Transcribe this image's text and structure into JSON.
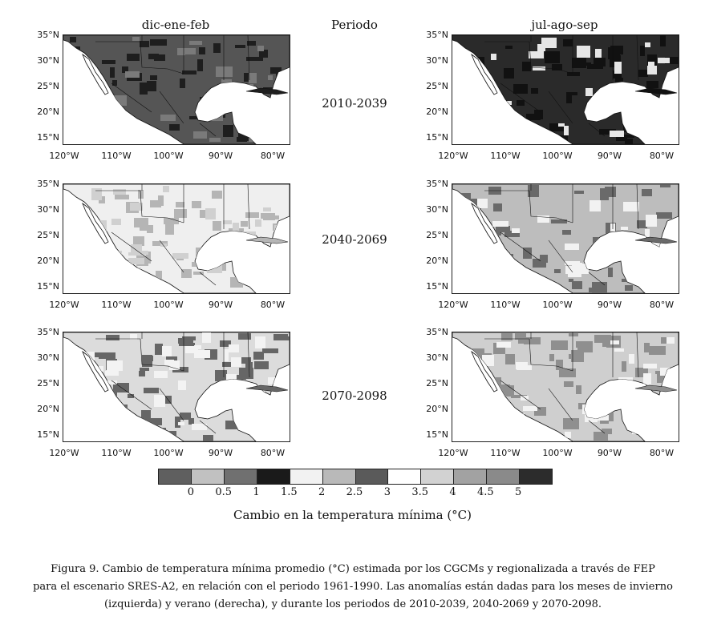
{
  "headers": {
    "left": "dic-ene-feb",
    "center": "Periodo",
    "right": "jul-ago-sep"
  },
  "periods": [
    "2010-2039",
    "2040-2069",
    "2070-2098"
  ],
  "lat_labels": [
    "35°N",
    "30°N",
    "25°N",
    "20°N",
    "15°N"
  ],
  "lon_labels": [
    "120°W",
    "110°W",
    "100°W",
    "90°W",
    "80°W"
  ],
  "panel_shades": {
    "r0_left": {
      "land": "#555555",
      "pattern": "#1e1e1e",
      "patch": "#7a7a7a"
    },
    "r0_right": {
      "land": "#2a2a2a",
      "pattern": "#111111",
      "patch": "#e6e6e6"
    },
    "r1_left": {
      "land": "#efefef",
      "pattern": "#b5b5b5",
      "patch": "#d0d0d0"
    },
    "r1_right": {
      "land": "#bdbdbd",
      "pattern": "#6a6a6a",
      "patch": "#f2f2f2"
    },
    "r2_left": {
      "land": "#dcdcdc",
      "pattern": "#666666",
      "patch": "#f3f3f3"
    },
    "r2_right": {
      "land": "#cfcfcf",
      "pattern": "#8f8f8f",
      "patch": "#f3f3f3"
    }
  },
  "legend": {
    "colors": [
      "#5f5f5f",
      "#c1c1c1",
      "#707070",
      "#1a1a1a",
      "#f2f2f2",
      "#b9b9b9",
      "#5a5a5a",
      "#ffffff",
      "#d2d2d2",
      "#a2a2a2",
      "#8a8a8a",
      "#2c2c2c"
    ],
    "ticks": [
      "0",
      "0.5",
      "1",
      "1.5",
      "2",
      "2.5",
      "3",
      "3.5",
      "4",
      "4.5",
      "5"
    ],
    "title": "Cambio en la temperatura mínima (°C)"
  },
  "caption": {
    "line1": "Figura 9. Cambio de temperatura mínima promedio (°C) estimada por los CGCMs y regionalizada a través de FEP",
    "line2": "para el escenario SRES-A2, en relación con el periodo 1961-1990. Las anomalías están dadas para los meses de invierno",
    "line3": "(izquierda) y verano (derecha), y durante los periodos de 2010-2039, 2040-2069 y 2070-2098."
  }
}
